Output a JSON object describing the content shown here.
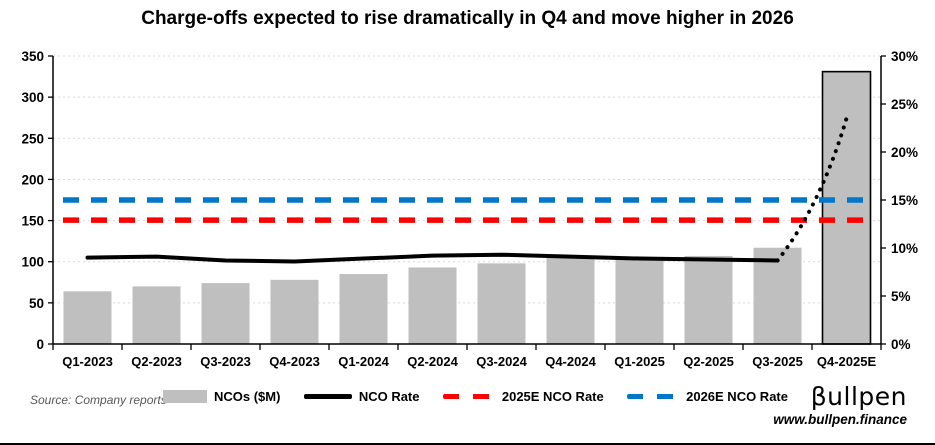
{
  "title": "Charge-offs expected to rise dramatically in Q4 and move higher in 2026",
  "footer": {
    "source_note": "Source: Company reports",
    "logo_text": "βullpen",
    "website": "www.bullpen.finance"
  },
  "legend": {
    "items": [
      {
        "label": "NCOs ($M)",
        "swatch": "bar"
      },
      {
        "label": "NCO Rate",
        "swatch": "line-solid"
      },
      {
        "label": "2025E NCO Rate",
        "swatch": "line-dashed-red"
      },
      {
        "label": "2026E NCO Rate",
        "swatch": "line-dashed-blue"
      }
    ]
  },
  "colors": {
    "bar_fill": "#BFBFBF",
    "bar_border_last": "#000000",
    "nco_line": "#000000",
    "projection_dots": "#000000",
    "rate_2025e": "#FF0000",
    "rate_2026e": "#0077C8",
    "gridline": "#D9D9D9",
    "axis": "#000000",
    "source_text": "#595959"
  },
  "chart_data": {
    "type": "bar+line combo, dual axis",
    "title": "Charge-offs expected to rise dramatically in Q4 and move higher in 2026",
    "categories": [
      "Q1-2023",
      "Q2-2023",
      "Q3-2023",
      "Q4-2023",
      "Q1-2024",
      "Q2-2024",
      "Q3-2024",
      "Q4-2024",
      "Q1-2025",
      "Q2-2025",
      "Q3-2025",
      "Q4-2025E"
    ],
    "series": [
      {
        "name": "NCOs ($M)",
        "type": "bar",
        "axis": "left",
        "values": [
          64,
          70,
          74,
          78,
          85,
          93,
          98,
          105,
          103,
          107,
          117,
          331
        ]
      },
      {
        "name": "NCO Rate",
        "type": "line",
        "axis": "right",
        "line_style": "solid",
        "unit": "%",
        "values": [
          9.0,
          9.1,
          8.7,
          8.6,
          8.9,
          9.2,
          9.3,
          9.1,
          8.9,
          8.8,
          8.7,
          null
        ]
      },
      {
        "name": "NCO Rate projection",
        "type": "line",
        "axis": "right",
        "line_style": "dotted",
        "unit": "%",
        "values": [
          null,
          null,
          null,
          null,
          null,
          null,
          null,
          null,
          null,
          null,
          8.7,
          23.5
        ]
      },
      {
        "name": "2025E NCO Rate",
        "type": "line",
        "axis": "right",
        "line_style": "dashed",
        "unit": "%",
        "constant": 12.9
      },
      {
        "name": "2026E NCO Rate",
        "type": "line",
        "axis": "right",
        "line_style": "dashed",
        "unit": "%",
        "constant": 15.0
      }
    ],
    "left_axis": {
      "min": 0,
      "max": 350,
      "tick_step": 50,
      "ticks": [
        0,
        50,
        100,
        150,
        200,
        250,
        300,
        350
      ]
    },
    "right_axis": {
      "min": 0,
      "max": 30,
      "tick_step": 5,
      "tick_labels": [
        "0%",
        "5%",
        "10%",
        "15%",
        "20%",
        "25%",
        "30%"
      ]
    },
    "grid": "horizontal dashed gridlines at left-axis ticks",
    "legend_position": "bottom"
  }
}
